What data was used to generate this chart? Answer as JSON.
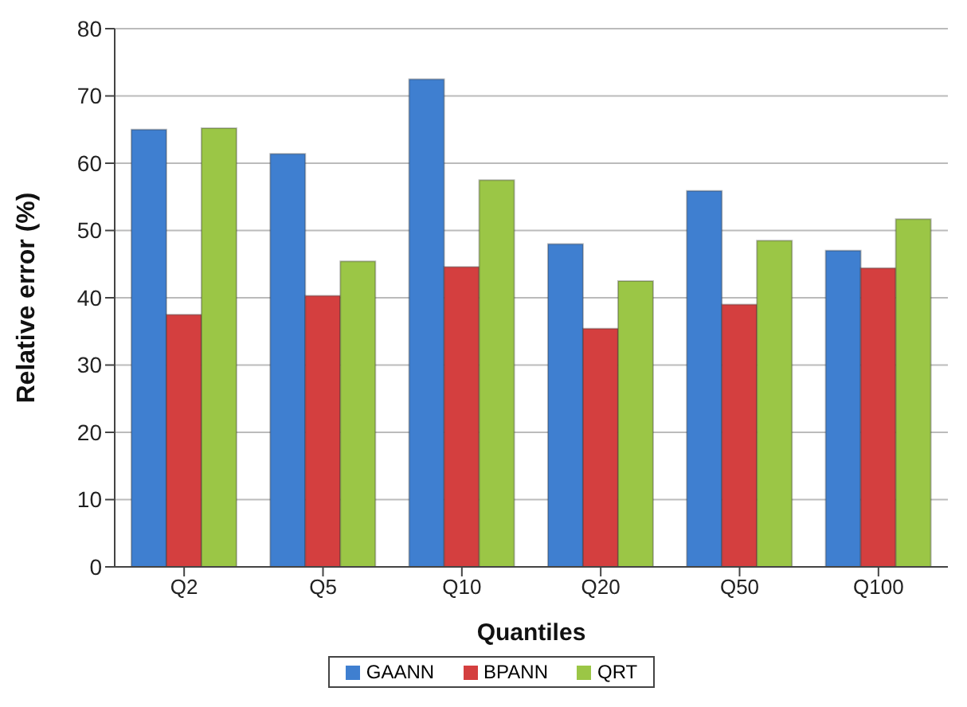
{
  "chart_data": {
    "type": "bar",
    "xlabel": "Quantiles",
    "ylabel": "Relative error (%)",
    "categories": [
      "Q2",
      "Q5",
      "Q10",
      "Q20",
      "Q50",
      "Q100"
    ],
    "series": [
      {
        "name": "GAANN",
        "color": "#3f7fd0",
        "values": [
          65,
          61.4,
          72.5,
          48,
          55.9,
          47
        ]
      },
      {
        "name": "BPANN",
        "color": "#d43f3f",
        "values": [
          37.5,
          40.3,
          44.6,
          35.4,
          39,
          44.4
        ]
      },
      {
        "name": "QRT",
        "color": "#9bc646",
        "values": [
          65.2,
          45.4,
          57.5,
          42.5,
          48.5,
          51.7
        ]
      }
    ],
    "ylim": [
      0,
      80
    ],
    "yticks": [
      0,
      10,
      20,
      30,
      40,
      50,
      60,
      70,
      80
    ],
    "grid": "y",
    "legend": "bottom"
  }
}
